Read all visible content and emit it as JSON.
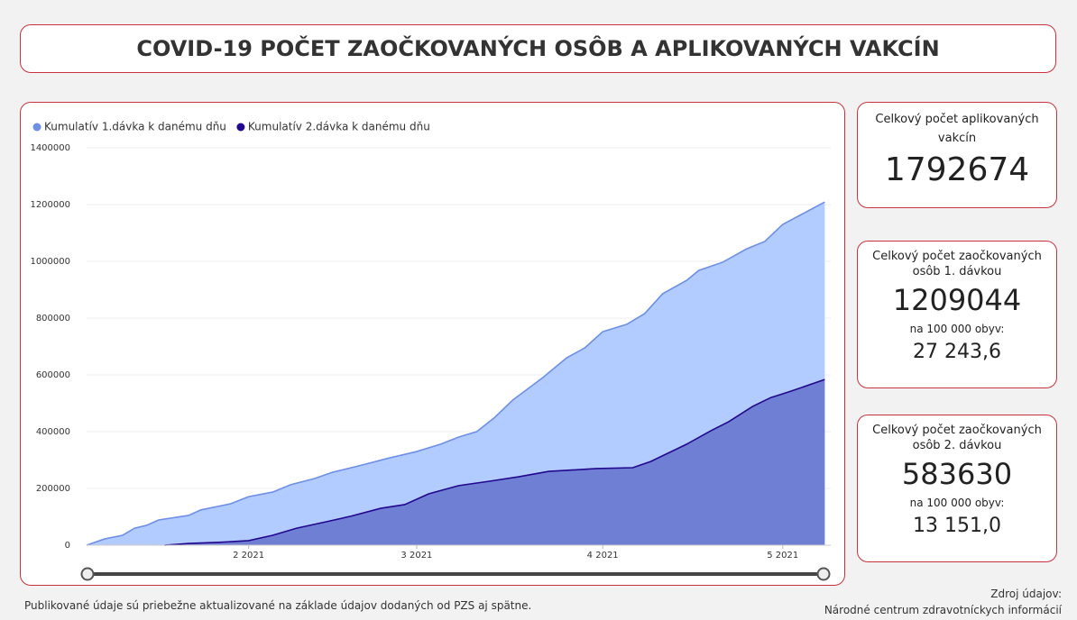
{
  "header": {
    "title": "COVID-19 POČET ZAOČKOVANÝCH OSÔB A APLIKOVANÝCH VAKCÍN"
  },
  "chart_data": {
    "type": "area",
    "xlim": [
      5,
      129
    ],
    "xticks": [
      {
        "value": 32,
        "label": "2 2021"
      },
      {
        "value": 60,
        "label": "3 2021"
      },
      {
        "value": 91,
        "label": "4 2021"
      },
      {
        "value": 121,
        "label": "5 2021"
      }
    ],
    "ylim": [
      0,
      1400000
    ],
    "yticks": [
      0,
      200000,
      400000,
      600000,
      800000,
      1000000,
      1200000,
      1400000
    ],
    "grid": true,
    "legend": "top-left",
    "series": [
      {
        "name": "Kumulatív 1.dávka k danému dňu",
        "color": "#6d8fe8",
        "fill": "#b3ccff",
        "x": [
          5,
          8,
          11,
          13,
          15,
          17,
          22,
          24,
          29,
          32,
          36,
          39,
          43,
          46,
          51,
          55,
          60,
          64,
          67,
          70,
          73,
          76,
          81,
          85,
          88,
          91,
          95,
          98,
          101,
          105,
          107,
          111,
          115,
          118,
          121,
          125,
          128
        ],
        "values": [
          0,
          22000,
          35000,
          60000,
          70000,
          89000,
          105000,
          124000,
          146000,
          171000,
          187000,
          213000,
          235000,
          257000,
          283000,
          305000,
          330000,
          356000,
          381000,
          400000,
          450000,
          511000,
          590000,
          660000,
          695000,
          752000,
          778000,
          816000,
          886000,
          933000,
          968000,
          997000,
          1044000,
          1070000,
          1130000,
          1175000,
          1209044
        ]
      },
      {
        "name": "Kumulatív 2.dávka k danému dňu",
        "color": "#22078f",
        "fill": "#6f7fd4",
        "x": [
          18,
          22,
          27,
          32,
          36,
          40,
          45,
          49,
          54,
          58,
          62,
          67,
          72,
          77,
          82,
          90,
          96,
          99,
          105,
          109,
          112,
          116,
          119,
          122,
          128
        ],
        "values": [
          0,
          6000,
          10000,
          16000,
          35000,
          60000,
          83000,
          102000,
          130000,
          143000,
          181000,
          210000,
          225000,
          241000,
          260000,
          270000,
          273000,
          295000,
          356000,
          403000,
          435000,
          489000,
          520000,
          540000,
          583630
        ]
      }
    ]
  },
  "cards": [
    {
      "title": "Celkový počet aplikovaných vakcín",
      "value": 1792674
    },
    {
      "title": "Celkový počet zaočkovaných osôb 1. dávkou",
      "value": 1209044,
      "sub_label": "na 100 000 obyv:",
      "sub_value": "27 243,6"
    },
    {
      "title": "Celkový počet zaočkovaných osôb 2. dávkou",
      "value": 583630,
      "sub_label": "na 100 000 obyv:",
      "sub_value": "13 151,0"
    }
  ],
  "footer": {
    "note": "Publikované údaje sú priebežne aktualizované na základe údajov dodaných od PZS aj spätne.",
    "source_label": "Zdroj údajov:",
    "source": "Národné centrum zdravotníckych informácií"
  }
}
